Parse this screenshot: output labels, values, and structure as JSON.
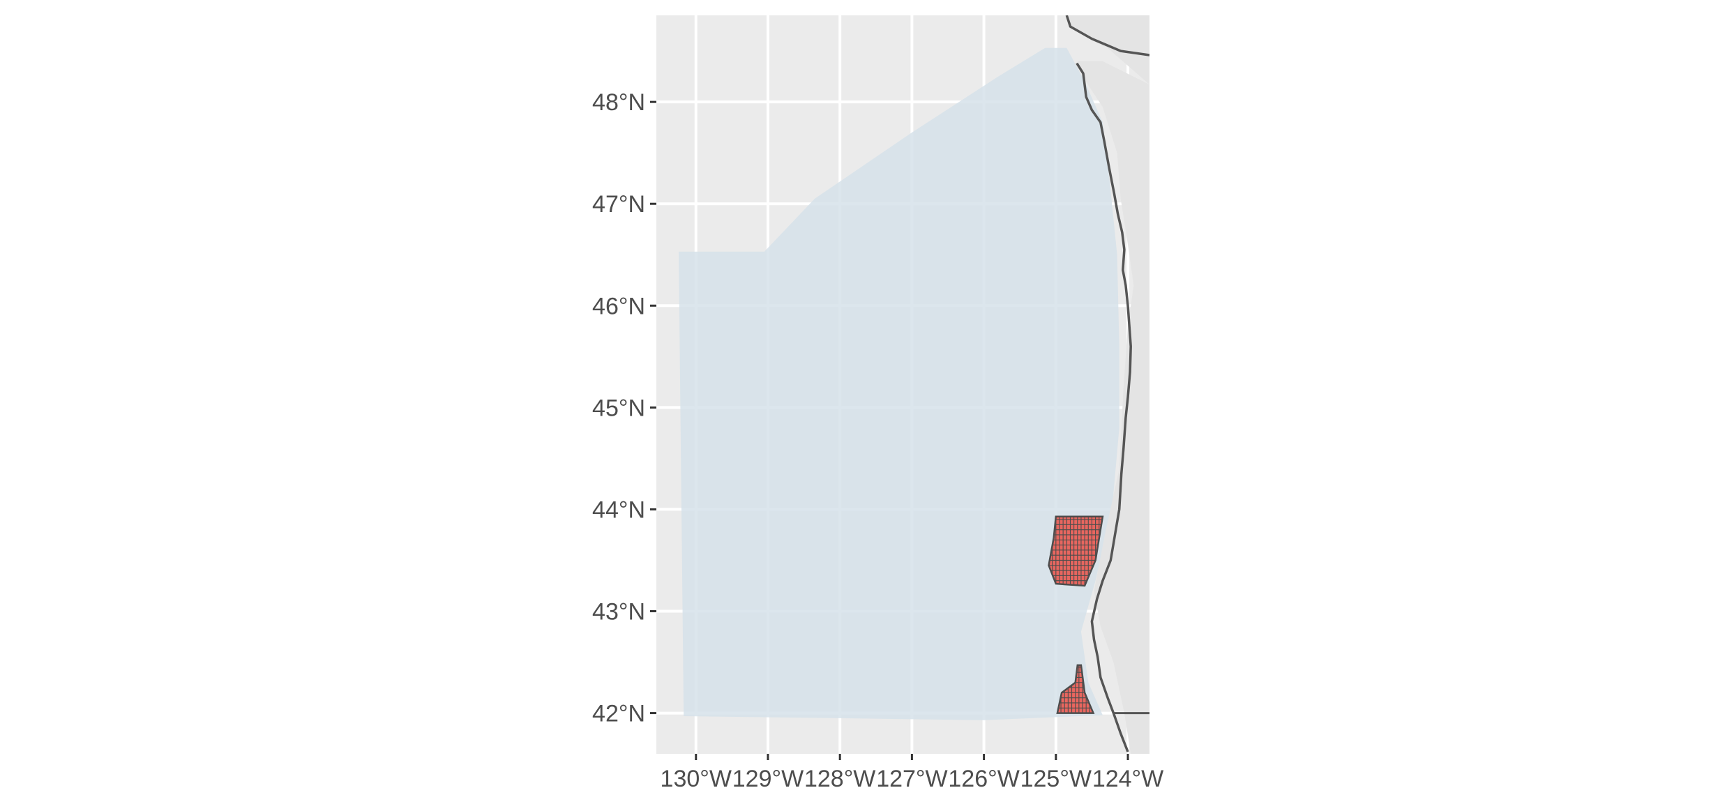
{
  "map": {
    "colors": {
      "panel_background": "#ebebeb",
      "gridline": "#ffffff",
      "study_area_fill": "#d6e2ea",
      "land_fill": "#e4e4e4",
      "coastline": "#555555",
      "grid_cells_fill": "#e8665f",
      "grid_cells_outline": "#4d4d4d",
      "axis_text": "#4d4d4d",
      "tick": "#333333"
    },
    "extent": {
      "lon_min": -130.55,
      "lon_max": -123.7,
      "lat_min": 41.6,
      "lat_max": 48.85
    },
    "x_ticks": [
      {
        "value": -130,
        "label": "130°W"
      },
      {
        "value": -129,
        "label": "129°W"
      },
      {
        "value": -128,
        "label": "128°W"
      },
      {
        "value": -127,
        "label": "127°W"
      },
      {
        "value": -126,
        "label": "126°W"
      },
      {
        "value": -125,
        "label": "125°W"
      },
      {
        "value": -124,
        "label": "124°W"
      }
    ],
    "y_ticks": [
      {
        "value": 48,
        "label": "48°N"
      },
      {
        "value": 47,
        "label": "47°N"
      },
      {
        "value": 46,
        "label": "46°N"
      },
      {
        "value": 45,
        "label": "45°N"
      },
      {
        "value": 44,
        "label": "44°N"
      },
      {
        "value": 43,
        "label": "43°N"
      },
      {
        "value": 42,
        "label": "42°N"
      }
    ],
    "study_area": [
      [
        -130.24,
        46.53
      ],
      [
        -129.05,
        46.53
      ],
      [
        -128.35,
        47.05
      ],
      [
        -127.0,
        47.7
      ],
      [
        -125.8,
        48.25
      ],
      [
        -125.15,
        48.53
      ],
      [
        -124.85,
        48.53
      ],
      [
        -124.6,
        48.2
      ],
      [
        -124.35,
        47.8
      ],
      [
        -124.25,
        47.2
      ],
      [
        -124.15,
        46.5
      ],
      [
        -124.12,
        45.6
      ],
      [
        -124.12,
        44.8
      ],
      [
        -124.22,
        44.0
      ],
      [
        -124.45,
        43.3
      ],
      [
        -124.65,
        42.8
      ],
      [
        -124.55,
        42.3
      ],
      [
        -124.35,
        41.98
      ],
      [
        -126.0,
        41.93
      ],
      [
        -128.0,
        41.95
      ],
      [
        -130.17,
        41.97
      ]
    ],
    "land": [
      [
        -124.8,
        48.85
      ],
      [
        -123.7,
        48.85
      ],
      [
        -123.7,
        41.6
      ],
      [
        -123.96,
        41.6
      ],
      [
        -124.05,
        42.0
      ],
      [
        -124.2,
        42.5
      ],
      [
        -124.38,
        42.85
      ],
      [
        -124.47,
        43.2
      ],
      [
        -124.32,
        43.75
      ],
      [
        -124.12,
        44.4
      ],
      [
        -124.06,
        45.2
      ],
      [
        -124.0,
        45.8
      ],
      [
        -123.92,
        46.2
      ],
      [
        -124.0,
        46.6
      ],
      [
        -124.1,
        47.05
      ],
      [
        -124.15,
        47.5
      ],
      [
        -124.35,
        47.95
      ],
      [
        -124.63,
        48.25
      ],
      [
        -124.7,
        48.4
      ],
      [
        -124.35,
        48.4
      ],
      [
        -123.7,
        48.17
      ]
    ],
    "vancouver_island": [
      [
        -124.82,
        48.85
      ],
      [
        -124.78,
        48.72
      ],
      [
        -124.35,
        48.55
      ],
      [
        -123.7,
        48.4
      ],
      [
        -123.7,
        48.85
      ]
    ],
    "coastline": [
      [
        -124.71,
        48.38
      ],
      [
        -124.62,
        48.28
      ],
      [
        -124.58,
        48.05
      ],
      [
        -124.5,
        47.92
      ],
      [
        -124.38,
        47.8
      ],
      [
        -124.33,
        47.62
      ],
      [
        -124.26,
        47.35
      ],
      [
        -124.19,
        47.1
      ],
      [
        -124.14,
        46.9
      ],
      [
        -124.08,
        46.72
      ],
      [
        -124.05,
        46.55
      ],
      [
        -124.07,
        46.35
      ],
      [
        -124.03,
        46.2
      ],
      [
        -124.0,
        46.0
      ],
      [
        -123.98,
        45.8
      ],
      [
        -123.96,
        45.6
      ],
      [
        -123.97,
        45.35
      ],
      [
        -124.0,
        45.1
      ],
      [
        -124.03,
        44.9
      ],
      [
        -124.06,
        44.6
      ],
      [
        -124.09,
        44.35
      ],
      [
        -124.12,
        44.0
      ],
      [
        -124.18,
        43.75
      ],
      [
        -124.24,
        43.5
      ],
      [
        -124.35,
        43.3
      ],
      [
        -124.43,
        43.12
      ],
      [
        -124.5,
        42.9
      ],
      [
        -124.47,
        42.72
      ],
      [
        -124.42,
        42.55
      ],
      [
        -124.38,
        42.35
      ],
      [
        -124.28,
        42.15
      ],
      [
        -124.2,
        42.0
      ],
      [
        -124.1,
        41.8
      ],
      [
        -124.0,
        41.62
      ]
    ],
    "northern_coast": [
      [
        -124.85,
        48.85
      ],
      [
        -124.8,
        48.74
      ],
      [
        -124.5,
        48.62
      ],
      [
        -124.1,
        48.5
      ],
      [
        -123.7,
        48.46
      ]
    ],
    "state_border": [
      [
        -124.2,
        42.0
      ],
      [
        -123.7,
        42.0
      ]
    ],
    "grid_blocks": [
      {
        "polygon": [
          [
            -125.0,
            43.93
          ],
          [
            -124.35,
            43.93
          ],
          [
            -124.45,
            43.5
          ],
          [
            -124.6,
            43.25
          ],
          [
            -125.0,
            43.27
          ],
          [
            -125.1,
            43.45
          ],
          [
            -125.03,
            43.72
          ]
        ],
        "lon_range": [
          -125.1,
          -124.35
        ],
        "lat_range": [
          43.25,
          43.93
        ]
      },
      {
        "polygon": [
          [
            -124.7,
            42.47
          ],
          [
            -124.65,
            42.47
          ],
          [
            -124.6,
            42.2
          ],
          [
            -124.48,
            42.0
          ],
          [
            -124.98,
            42.0
          ],
          [
            -124.92,
            42.2
          ],
          [
            -124.73,
            42.3
          ]
        ],
        "lon_range": [
          -124.98,
          -124.48
        ],
        "lat_range": [
          42.0,
          42.47
        ]
      }
    ]
  }
}
